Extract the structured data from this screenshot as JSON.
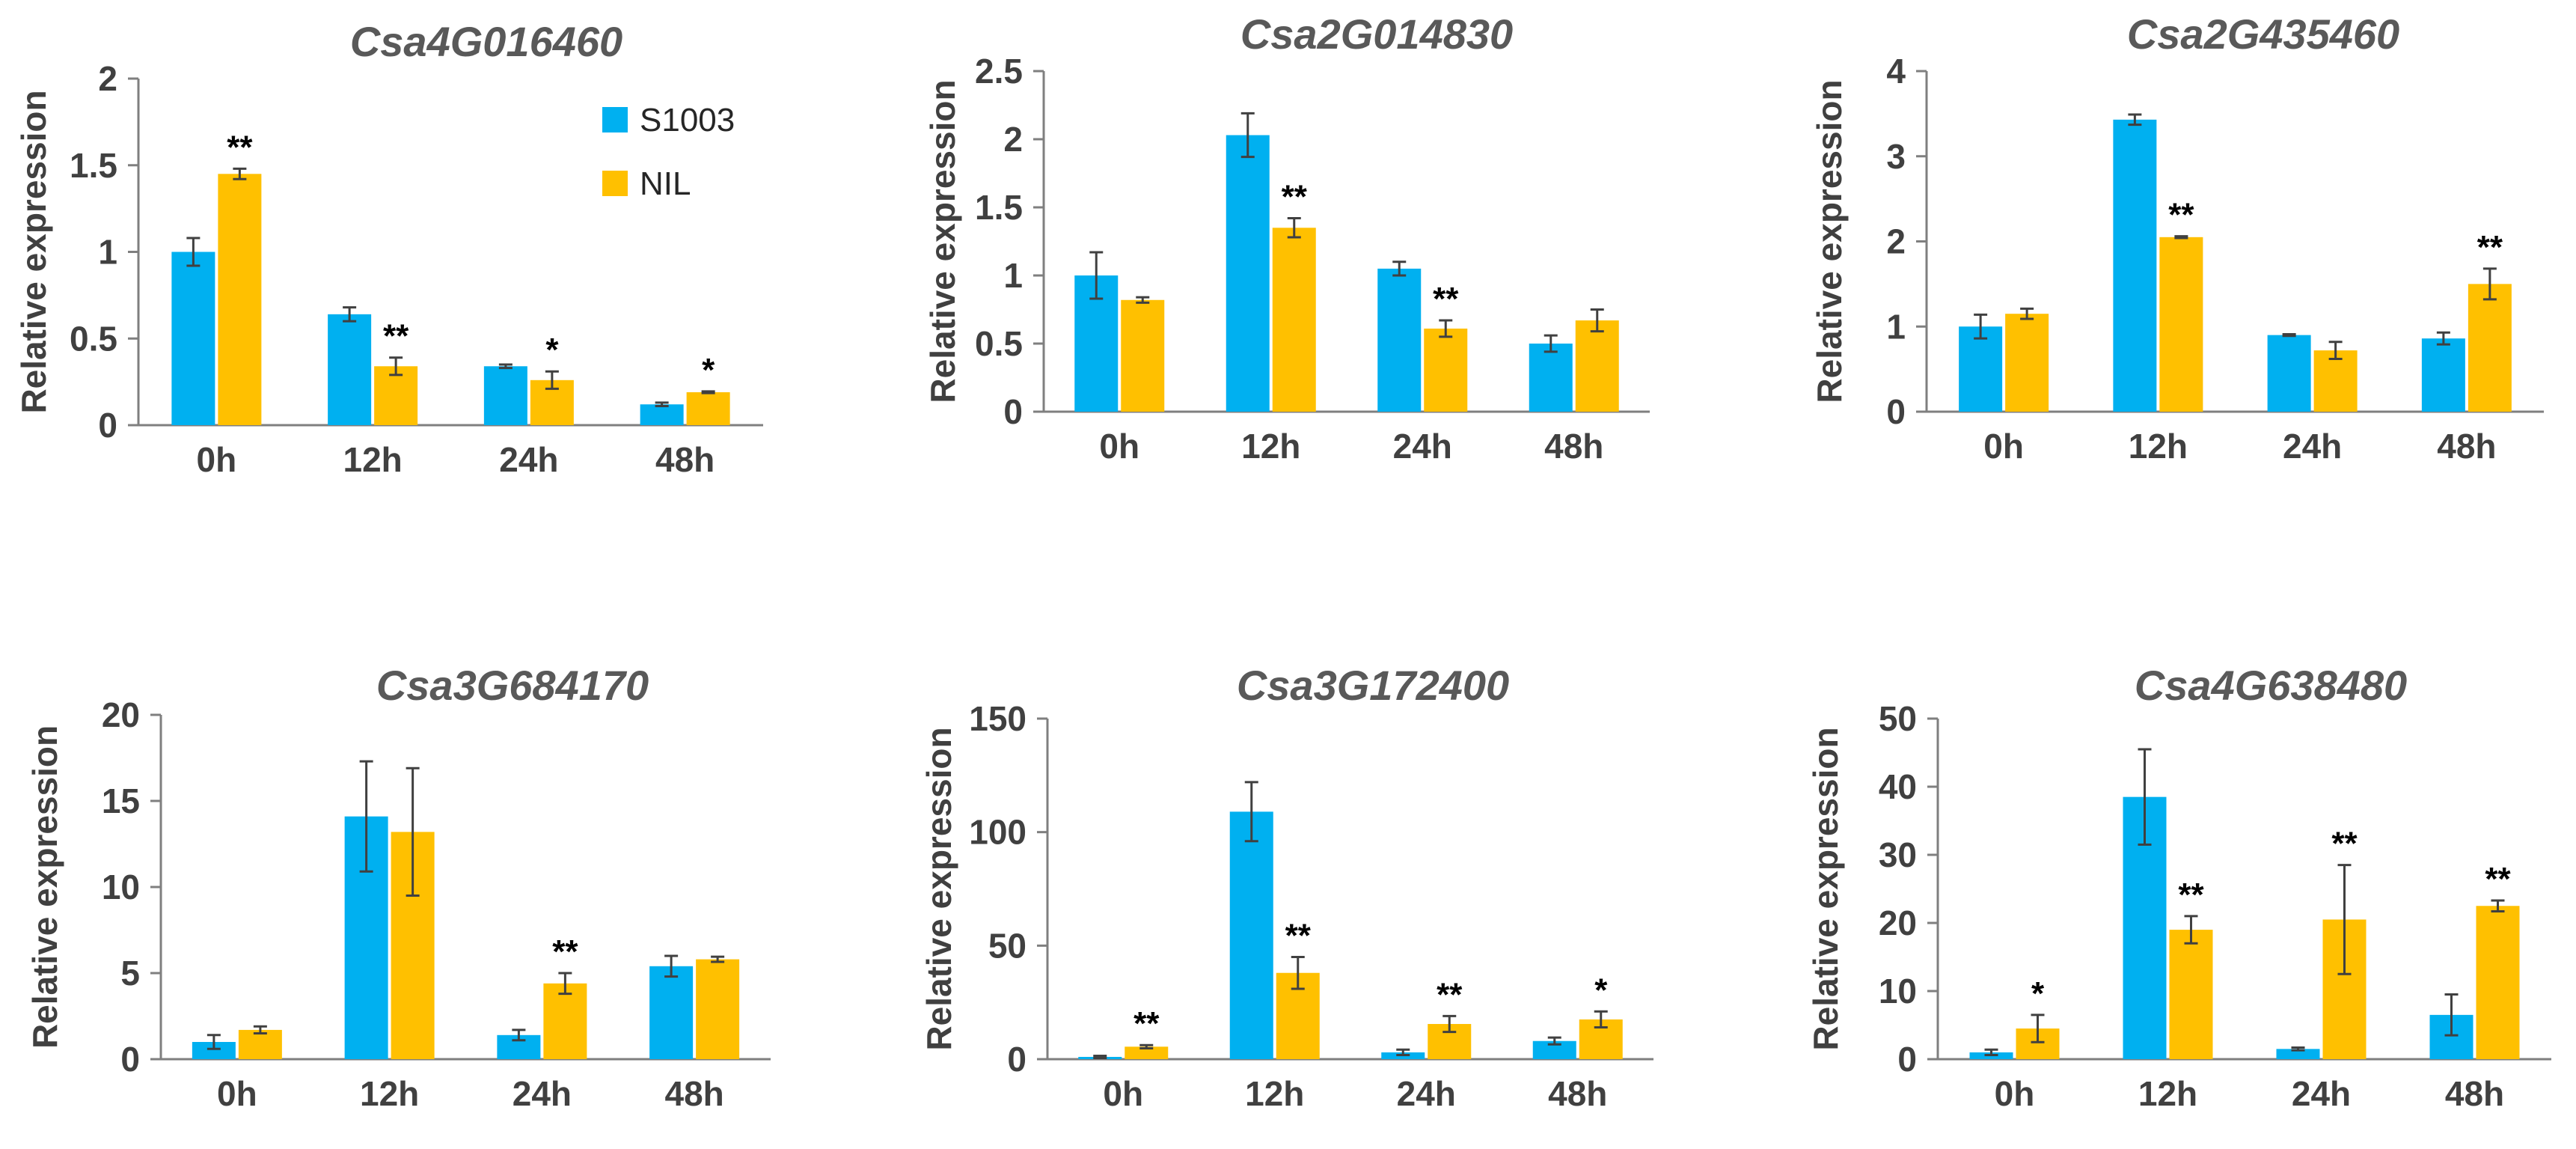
{
  "colors": {
    "s1003": "#00B0F0",
    "nil": "#FFC000"
  },
  "legend": {
    "s1003": "S1003",
    "nil": "NIL"
  },
  "chart_data": [
    {
      "type": "bar",
      "title": "Csa4G016460",
      "ylabel": "Relative expression",
      "xlabel": "",
      "categories": [
        "0h",
        "12h",
        "24h",
        "48h"
      ],
      "ylim": [
        0,
        2
      ],
      "yticks": [
        "0",
        "0.5",
        "1",
        "1.5",
        "2"
      ],
      "ytick_values": [
        0,
        0.5,
        1,
        1.5,
        2
      ],
      "series": [
        {
          "name": "S1003",
          "values": [
            1.0,
            0.64,
            0.34,
            0.12
          ],
          "errors": [
            0.08,
            0.04,
            0.01,
            0.01
          ]
        },
        {
          "name": "NIL",
          "values": [
            1.45,
            0.34,
            0.26,
            0.19
          ],
          "errors": [
            0.03,
            0.05,
            0.05,
            0.005
          ]
        }
      ],
      "annotations": [
        "**",
        "**",
        "*",
        "*"
      ]
    },
    {
      "type": "bar",
      "title": "Csa2G014830",
      "ylabel": "Relative expression",
      "xlabel": "",
      "categories": [
        "0h",
        "12h",
        "24h",
        "48h"
      ],
      "ylim": [
        0,
        2.5
      ],
      "yticks": [
        "0",
        "0.5",
        "1",
        "1.5",
        "2",
        "2.5"
      ],
      "ytick_values": [
        0,
        0.5,
        1,
        1.5,
        2,
        2.5
      ],
      "series": [
        {
          "name": "S1003",
          "values": [
            1.0,
            2.03,
            1.05,
            0.5
          ],
          "errors": [
            0.17,
            0.16,
            0.05,
            0.06
          ]
        },
        {
          "name": "NIL",
          "values": [
            0.82,
            1.35,
            0.61,
            0.67
          ],
          "errors": [
            0.02,
            0.07,
            0.06,
            0.08
          ]
        }
      ],
      "annotations": [
        "",
        "**",
        "**",
        ""
      ]
    },
    {
      "type": "bar",
      "title": "Csa2G435460",
      "ylabel": "Relative expression",
      "xlabel": "",
      "categories": [
        "0h",
        "12h",
        "24h",
        "48h"
      ],
      "ylim": [
        0,
        4
      ],
      "yticks": [
        "0",
        "1",
        "2",
        "3",
        "4"
      ],
      "ytick_values": [
        0,
        1,
        2,
        3,
        4
      ],
      "series": [
        {
          "name": "S1003",
          "values": [
            1.0,
            3.43,
            0.9,
            0.86
          ],
          "errors": [
            0.14,
            0.06,
            0.01,
            0.07
          ]
        },
        {
          "name": "NIL",
          "values": [
            1.15,
            2.05,
            0.72,
            1.5
          ],
          "errors": [
            0.06,
            0.01,
            0.1,
            0.18
          ]
        }
      ],
      "annotations": [
        "",
        "**",
        "",
        "**"
      ]
    },
    {
      "type": "bar",
      "title": "Csa3G684170",
      "ylabel": "Relative expression",
      "xlabel": "",
      "categories": [
        "0h",
        "12h",
        "24h",
        "48h"
      ],
      "ylim": [
        0,
        20
      ],
      "yticks": [
        "0",
        "5",
        "10",
        "15",
        "20"
      ],
      "ytick_values": [
        0,
        5,
        10,
        15,
        20
      ],
      "series": [
        {
          "name": "S1003",
          "values": [
            1.0,
            14.1,
            1.4,
            5.4
          ],
          "errors": [
            0.4,
            3.2,
            0.3,
            0.6
          ]
        },
        {
          "name": "NIL",
          "values": [
            1.7,
            13.2,
            4.4,
            5.8
          ],
          "errors": [
            0.2,
            3.7,
            0.6,
            0.15
          ]
        }
      ],
      "annotations": [
        "",
        "",
        "**",
        ""
      ]
    },
    {
      "type": "bar",
      "title": "Csa3G172400",
      "ylabel": "Relative expression",
      "xlabel": "",
      "categories": [
        "0h",
        "12h",
        "24h",
        "48h"
      ],
      "ylim": [
        0,
        150
      ],
      "yticks": [
        "0",
        "50",
        "100",
        "150"
      ],
      "ytick_values": [
        0,
        50,
        100,
        150
      ],
      "series": [
        {
          "name": "S1003",
          "values": [
            1.0,
            109,
            3,
            8
          ],
          "errors": [
            0.5,
            13,
            1.2,
            1.5
          ]
        },
        {
          "name": "NIL",
          "values": [
            5.5,
            38,
            15.5,
            17.5
          ],
          "errors": [
            0.7,
            7,
            3.5,
            3.5
          ]
        }
      ],
      "annotations": [
        "**",
        "**",
        "**",
        "*"
      ]
    },
    {
      "type": "bar",
      "title": "Csa4G638480",
      "ylabel": "Relative expression",
      "xlabel": "",
      "categories": [
        "0h",
        "12h",
        "24h",
        "48h"
      ],
      "ylim": [
        0,
        50
      ],
      "yticks": [
        "0",
        "10",
        "20",
        "30",
        "40",
        "50"
      ],
      "ytick_values": [
        0,
        10,
        20,
        30,
        40,
        50
      ],
      "series": [
        {
          "name": "S1003",
          "values": [
            1.0,
            38.5,
            1.5,
            6.5
          ],
          "errors": [
            0.4,
            7,
            0.2,
            3
          ]
        },
        {
          "name": "NIL",
          "values": [
            4.5,
            19,
            20.5,
            22.5
          ],
          "errors": [
            2,
            2,
            8,
            0.8
          ]
        }
      ],
      "annotations": [
        "*",
        "**",
        "**",
        "**"
      ]
    }
  ]
}
